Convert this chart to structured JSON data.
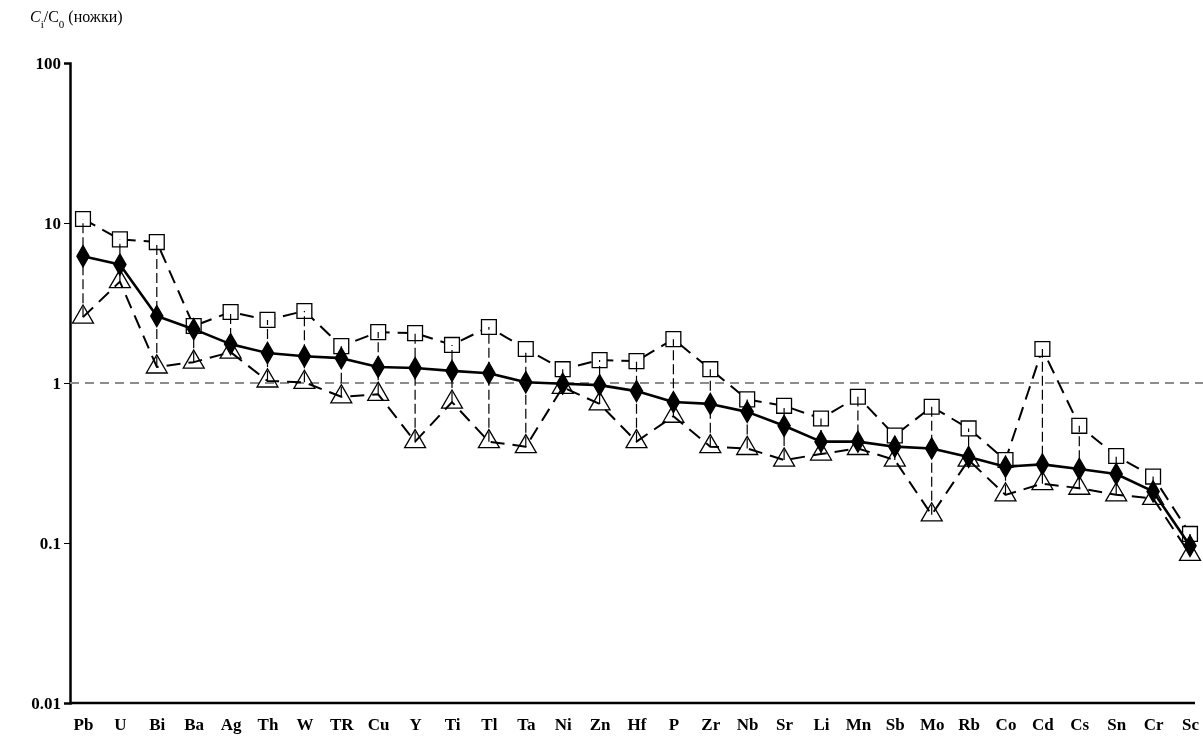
{
  "chart_data": {
    "type": "line",
    "ylabel": "C$_{i}$/C$_{0}$ (ножки)",
    "log": "y",
    "ylim": [
      0.01,
      100
    ],
    "yticks": [
      0.01,
      0.1,
      1,
      10,
      100
    ],
    "grid": false,
    "categories": [
      "Pb",
      "U",
      "Bi",
      "Ba",
      "Ag",
      "Th",
      "W",
      "TR",
      "Cu",
      "Y",
      "Ti",
      "Tl",
      "Ta",
      "Ni",
      "Zn",
      "Hf",
      "P",
      "Zr",
      "Nb",
      "Sr",
      "Li",
      "Mn",
      "Sb",
      "Mo",
      "Rb",
      "Co",
      "Cd",
      "Cs",
      "Sn",
      "Cr",
      "Sc"
    ],
    "ref_lines": [
      {
        "axis": "y",
        "value": 1,
        "color": "#8c8c8c",
        "line_style": "dashed"
      }
    ],
    "series": [
      {
        "color": "#000000",
        "marker": "square",
        "line_style": "dashed",
        "values": [
          10.6,
          7.9,
          7.6,
          2.27,
          2.78,
          2.48,
          2.82,
          1.7,
          2.08,
          2.05,
          1.73,
          2.24,
          1.63,
          1.22,
          1.39,
          1.37,
          1.88,
          1.22,
          0.79,
          0.72,
          0.6,
          0.82,
          0.47,
          0.71,
          0.52,
          0.33,
          1.63,
          0.54,
          0.35,
          0.26,
          0.114
        ]
      },
      {
        "color": "#000000",
        "marker": "triangle",
        "line_style": "dashed",
        "values": [
          2.58,
          4.3,
          1.26,
          1.35,
          1.56,
          1.03,
          1.01,
          0.82,
          0.85,
          0.43,
          0.76,
          0.43,
          0.4,
          0.94,
          0.74,
          0.43,
          0.62,
          0.4,
          0.39,
          0.33,
          0.36,
          0.39,
          0.33,
          0.15,
          0.33,
          0.2,
          0.235,
          0.22,
          0.2,
          0.19,
          0.085
        ]
      },
      {
        "color": "#000000",
        "marker": "diamond",
        "line_style": "solid",
        "values": [
          6.2,
          5.5,
          2.62,
          2.17,
          1.75,
          1.54,
          1.47,
          1.43,
          1.26,
          1.24,
          1.19,
          1.15,
          1.01,
          0.99,
          0.97,
          0.89,
          0.76,
          0.74,
          0.66,
          0.54,
          0.43,
          0.43,
          0.4,
          0.39,
          0.345,
          0.3,
          0.31,
          0.29,
          0.27,
          0.21,
          0.096
        ],
        "errors": [
          [
            2.58,
            10.6
          ],
          [
            4.3,
            7.9
          ],
          [
            1.26,
            7.6
          ],
          [
            1.35,
            2.27
          ],
          [
            1.56,
            2.78
          ],
          [
            1.03,
            2.48
          ],
          [
            1.01,
            2.82
          ],
          [
            0.82,
            1.7
          ],
          [
            0.85,
            2.08
          ],
          [
            0.43,
            2.05
          ],
          [
            0.76,
            1.73
          ],
          [
            0.43,
            2.24
          ],
          [
            0.4,
            1.63
          ],
          [
            0.94,
            1.22
          ],
          [
            0.74,
            1.39
          ],
          [
            0.43,
            1.37
          ],
          [
            0.62,
            1.88
          ],
          [
            0.4,
            1.22
          ],
          [
            0.39,
            0.79
          ],
          [
            0.33,
            0.72
          ],
          [
            0.36,
            0.6
          ],
          [
            0.39,
            0.82
          ],
          [
            0.33,
            0.47
          ],
          [
            0.15,
            0.71
          ],
          [
            0.33,
            0.52
          ],
          [
            0.2,
            0.33
          ],
          [
            0.235,
            1.63
          ],
          [
            0.22,
            0.54
          ],
          [
            0.2,
            0.35
          ],
          [
            0.19,
            0.26
          ],
          [
            0.085,
            0.114
          ]
        ]
      }
    ]
  }
}
